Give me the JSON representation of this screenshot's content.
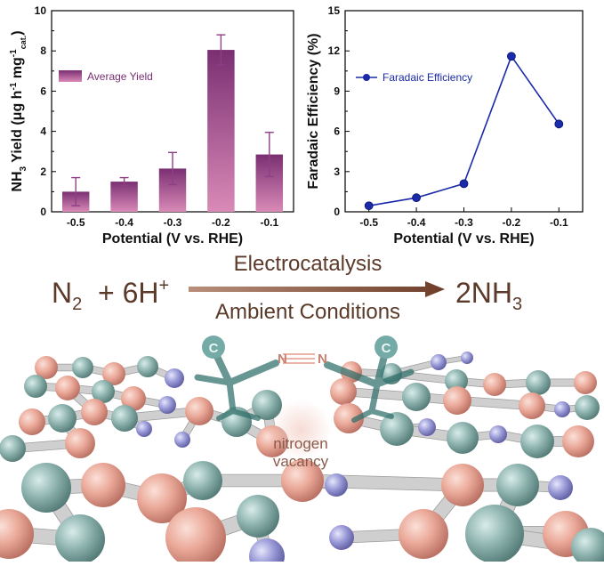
{
  "chart_data": [
    {
      "type": "bar",
      "categories": [
        "-0.5",
        "-0.4",
        "-0.3",
        "-0.2",
        "-0.1"
      ],
      "series": [
        {
          "name": "Average Yield",
          "values": [
            1.0,
            1.5,
            2.15,
            8.05,
            2.85
          ],
          "errors": [
            0.7,
            0.2,
            0.8,
            0.75,
            1.1
          ]
        }
      ],
      "xlabel": "Potential (V vs. RHE)",
      "ylabel_main": "NH",
      "ylabel_sub": "3",
      "ylabel_mid": " Yield (μg h",
      "ylabel_sup1": "-1",
      "ylabel_mid2": " mg",
      "ylabel_sup2": "-1",
      "ylabel_sub2": "cat.",
      "ylabel_end": ")",
      "ylim": [
        0,
        10
      ],
      "yticks": [
        "0",
        "2",
        "4",
        "6",
        "8",
        "10"
      ],
      "legend": "top-left",
      "bar_color": "#8e3f86",
      "legend_color": "#7a2f72"
    },
    {
      "type": "line",
      "x": [
        "-0.5",
        "-0.4",
        "-0.3",
        "-0.2",
        "-0.1"
      ],
      "series": [
        {
          "name": "Faradaic Efficiency",
          "values": [
            0.45,
            1.05,
            2.1,
            11.6,
            6.55
          ]
        }
      ],
      "xlabel": "Potential (V vs. RHE)",
      "ylabel": "Faradaic Efficiency (%)",
      "ylim": [
        0,
        15
      ],
      "yticks": [
        "0",
        "3",
        "6",
        "9",
        "12",
        "15"
      ],
      "legend": "top-left",
      "line_color": "#1a2aa8"
    }
  ],
  "equation": {
    "n2_main": "N",
    "n2_sub": "2",
    "plus": "+ 6H",
    "h_sup": "+",
    "product_main": "2NH",
    "product_sub": "3",
    "above_arrow": "Electrocatalysis",
    "below_arrow": "Ambient Conditions",
    "color": "#5b3a2a"
  },
  "illustration": {
    "vacancy_line1": "nitrogen",
    "vacancy_line2": "vacancy",
    "carbon_label": "C",
    "dinitrogen_label": "N≡N",
    "colors": {
      "boron": "#e8a89a",
      "carbon": "#8fb4b0",
      "nitrogen": "#9a9ad8",
      "bond": "#b8b8b8"
    }
  }
}
